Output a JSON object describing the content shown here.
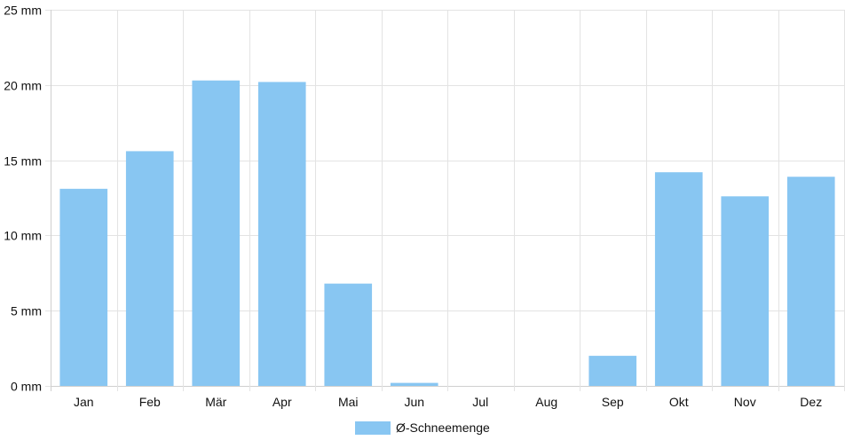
{
  "chart_data": {
    "type": "bar",
    "categories": [
      "Jan",
      "Feb",
      "Mär",
      "Apr",
      "Mai",
      "Jun",
      "Jul",
      "Aug",
      "Sep",
      "Okt",
      "Nov",
      "Dez"
    ],
    "series": [
      {
        "name": "Ø-Schneemenge",
        "values": [
          13.1,
          15.6,
          20.3,
          20.2,
          6.8,
          0.2,
          0,
          0,
          2.0,
          14.2,
          12.6,
          13.9
        ]
      }
    ],
    "y_ticks": [
      "0 mm",
      "5 mm",
      "10 mm",
      "15 mm",
      "20 mm",
      "25 mm"
    ],
    "ylim": [
      0,
      25
    ],
    "grid": true,
    "legend_position": "bottom-center",
    "bar_color": "#88c6f2"
  }
}
